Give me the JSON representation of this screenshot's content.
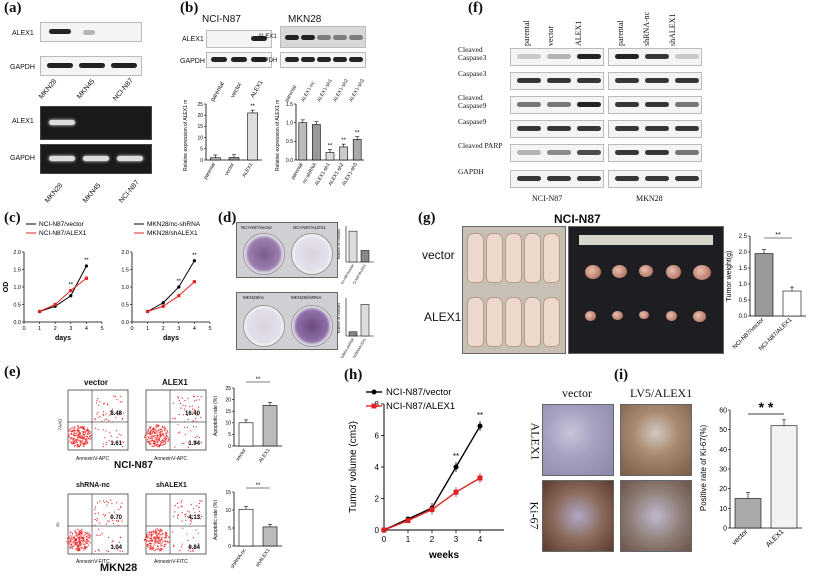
{
  "panel_labels": {
    "a": "(a)",
    "b": "(b)",
    "c": "(c)",
    "d": "(d)",
    "e": "(e)",
    "f": "(f)",
    "g": "(g)",
    "h": "(h)",
    "i": "(i)"
  },
  "a": {
    "row_alex1": "ALEX1",
    "row_gapdh": "GAPDH",
    "row_alex1_2": "ALEX1",
    "row_gapdh_2": "GAPDH",
    "lanes": [
      "MKN28",
      "MKN45",
      "NCI-N87"
    ],
    "lanes2": [
      "MKN28",
      "MKN45",
      "NCI-N87"
    ]
  },
  "b": {
    "left_title": "NCI-N87",
    "right_title": "MKN28",
    "alex1": "ALEX1",
    "gapdh": "GAPDH",
    "alex1_r": "ALEX1",
    "gapdh_r": "GAPDH",
    "left_lanes": [
      "parental",
      "vector",
      "ALEX1"
    ],
    "right_lanes": [
      "parental",
      "ALEX1-nc",
      "ALEX1-sh1",
      "ALEX1-sh2",
      "ALEX1-sh3"
    ],
    "ylabel_left": "Relative expression of ALEX1 mRNA",
    "ylabel_right": "Relative expression of ALEX1 mRNA",
    "chart_left": {
      "type": "bar",
      "categories": [
        "parental",
        "vector",
        "ALEX1"
      ],
      "values": [
        1,
        1.1,
        21
      ],
      "ylim": [
        0,
        25
      ],
      "yticks": [
        "0",
        "5",
        "10",
        "15",
        "20",
        "25"
      ],
      "sig": "**"
    },
    "chart_right": {
      "type": "bar",
      "categories": [
        "parental",
        "nc-shRNA",
        "ALEX1-sh1",
        "ALEX1-sh2",
        "ALEX1-sh3"
      ],
      "values": [
        1.0,
        0.95,
        0.2,
        0.35,
        0.55
      ],
      "ylim": [
        0,
        1.5
      ],
      "yticks": [
        "0.0",
        "0.5",
        "1.0",
        "1.5"
      ],
      "sig": [
        "**",
        "**",
        "**"
      ]
    }
  },
  "c": {
    "left": {
      "legend": [
        "NCI-N87/vector",
        "NCI-N87/ALEX1"
      ],
      "ylabel": "OD",
      "xlabel": "days",
      "xticks": [
        "0",
        "1",
        "2",
        "3",
        "4",
        "5"
      ],
      "yticks": [
        "0.0",
        "0.5",
        "1.0",
        "1.5",
        "2.0"
      ],
      "series": [
        {
          "name": "NCI-N87/vector",
          "x": [
            1,
            2,
            3,
            4
          ],
          "y": [
            0.3,
            0.45,
            0.75,
            1.6
          ]
        },
        {
          "name": "NCI-N87/ALEX1",
          "x": [
            1,
            2,
            3,
            4
          ],
          "y": [
            0.3,
            0.5,
            0.9,
            1.25
          ]
        }
      ],
      "sig": [
        "**",
        "**"
      ]
    },
    "right": {
      "legend": [
        "MKN28/nc-shRNA",
        "MKN28/shALEX1"
      ],
      "ylabel": "",
      "xlabel": "days",
      "xticks": [
        "0",
        "1",
        "2",
        "3",
        "4",
        "5"
      ],
      "yticks": [
        "0.0",
        "0.5",
        "1.0",
        "1.5",
        "2.0"
      ],
      "series": [
        {
          "name": "MKN28/nc-shRNA",
          "x": [
            1,
            2,
            3,
            4
          ],
          "y": [
            0.3,
            0.55,
            1.0,
            1.75
          ]
        },
        {
          "name": "MKN28/shALEX1",
          "x": [
            1,
            2,
            3,
            4
          ],
          "y": [
            0.3,
            0.45,
            0.75,
            1.15
          ]
        }
      ],
      "sig": [
        "**",
        "**"
      ]
    }
  },
  "d": {
    "top_labels": [
      "NCI-N87/vector",
      "NCI-N87/ALEX1"
    ],
    "bottom_labels": [
      "MKN28/nc",
      "MKN28/shRNA"
    ],
    "ylabel": "Number of colonies",
    "top_bars": {
      "type": "bar",
      "categories": [
        "NCI-N87/vector",
        "NCI-N87/ALEX1"
      ],
      "values": [
        120,
        45
      ]
    },
    "bottom_bars": {
      "type": "bar",
      "categories": [
        "MKN28/nc-shRNA",
        "MKN28/shALEX1"
      ],
      "values": [
        20,
        150
      ]
    }
  },
  "e": {
    "top_labels": [
      "vector",
      "ALEX1"
    ],
    "bottom_labels": [
      "shRNA-nc",
      "shALEX1"
    ],
    "top_q": [
      [
        "8.48",
        "1.61"
      ],
      [
        "16.40",
        "1.94"
      ]
    ],
    "bottom_q": [
      [
        "9.70",
        "1.04"
      ],
      [
        "4.13",
        "0.84"
      ]
    ],
    "axis_top": "AnnexinV-APC",
    "axis_bottom": "AnnexinV-FITC",
    "axis_y": "7AAD",
    "axis_y2": "PI",
    "top_cell": "NCI-N87",
    "bottom_cell": "MKN28",
    "bars_top": {
      "type": "bar",
      "categories": [
        "vector",
        "ALEX1"
      ],
      "values": [
        10,
        17.5
      ],
      "ylim": [
        0,
        25
      ],
      "yticks": [
        "0",
        "5",
        "10",
        "15",
        "20",
        "25"
      ],
      "ylabel": "Apoptotic rate (%)",
      "sig": "**"
    },
    "bars_bottom": {
      "type": "bar",
      "categories": [
        "shRNA-nc",
        "shALEX1"
      ],
      "values": [
        10.2,
        5.3
      ],
      "ylim": [
        0,
        15
      ],
      "yticks": [
        "0",
        "5",
        "10",
        "15"
      ],
      "ylabel": "Apoptotic rate (%)",
      "sig": "**"
    }
  },
  "f": {
    "rows": [
      "Cleaved Caspase3",
      "Caspase3",
      "Cleaved Caspase9",
      "Caspase9",
      "Cleaved PARP",
      "GAPDH"
    ],
    "left_lanes": [
      "parental",
      "vector",
      "ALEX1"
    ],
    "right_lanes": [
      "parental",
      "shRNA-nc",
      "shALEX1"
    ],
    "left_cell": "NCI-N87",
    "right_cell": "MKN28"
  },
  "g": {
    "title": "NCI-N87",
    "row1": "vector",
    "row2": "ALEX1",
    "chart": {
      "type": "bar",
      "categories": [
        "NCI-N87/vector",
        "NCI-N87/ALEX1"
      ],
      "values": [
        1.95,
        0.78
      ],
      "ylim": [
        0,
        2.5
      ],
      "yticks": [
        "0.0",
        "0.5",
        "1.0",
        "1.5",
        "2.0",
        "2.5"
      ],
      "ylabel": "Tumor weight(g)",
      "sig": "**"
    }
  },
  "h": {
    "chart": {
      "type": "line",
      "legend": [
        "NCI-N87/vector",
        "NCI-N87/ALEX1"
      ],
      "ylabel": "Tumor volume (cm3)",
      "xlabel": "weeks",
      "xticks": [
        "0",
        "1",
        "2",
        "3",
        "4"
      ],
      "yticks": [
        "0",
        "2",
        "4",
        "6",
        "8"
      ],
      "ylim": [
        0,
        8
      ],
      "xlim": [
        0,
        5
      ],
      "series": [
        {
          "name": "NCI-N87/vector",
          "color": "#000000",
          "x": [
            0,
            1,
            2,
            3,
            4
          ],
          "y": [
            0,
            0.7,
            1.4,
            4.0,
            6.6
          ]
        },
        {
          "name": "NCI-N87/ALEX1",
          "color": "#e02020",
          "x": [
            0,
            1,
            2,
            3,
            4
          ],
          "y": [
            0,
            0.6,
            1.3,
            2.4,
            3.3
          ]
        }
      ],
      "sig": [
        "**",
        "**"
      ]
    }
  },
  "i": {
    "col1": "vector",
    "col2": "LV5/ALEX1",
    "row1": "ALEX1",
    "row2": "Ki-67",
    "chart": {
      "type": "bar",
      "categories": [
        "vector",
        "ALEX1"
      ],
      "values": [
        15,
        52
      ],
      "ylim": [
        0,
        60
      ],
      "yticks": [
        "0",
        "10",
        "20",
        "30",
        "40",
        "50",
        "60"
      ],
      "ylabel": "Positive rate of Ki-67(%)",
      "sig": "* *"
    }
  }
}
